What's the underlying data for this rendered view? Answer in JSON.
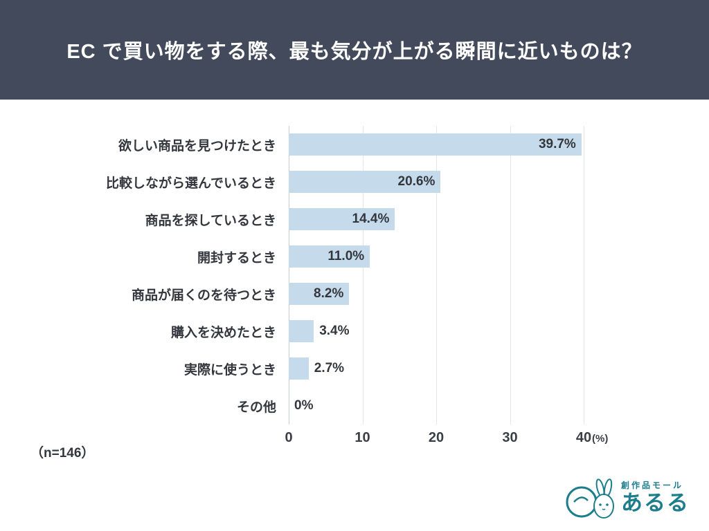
{
  "header": {
    "title": "EC で買い物をする際、最も気分が上がる瞬間に近いものは？"
  },
  "chart_data": {
    "type": "bar",
    "orientation": "horizontal",
    "title": "EC で買い物をする際、最も気分が上がる瞬間に近いものは？",
    "categories": [
      "欲しい商品を見つけたとき",
      "比較しながら選んでいるとき",
      "商品を探しているとき",
      "開封するとき",
      "商品が届くのを待つとき",
      "購入を決めたとき",
      "実際に使うとき",
      "その他"
    ],
    "values": [
      39.7,
      20.6,
      14.4,
      11.0,
      8.2,
      3.4,
      2.7,
      0
    ],
    "value_labels": [
      "39.7%",
      "20.6%",
      "14.4%",
      "11.0%",
      "8.2%",
      "3.4%",
      "2.7%",
      "0%"
    ],
    "xlim": [
      0,
      40
    ],
    "xticks": [
      0,
      10,
      20,
      30,
      40
    ],
    "unit_label": "(%)",
    "bar_color": "#c5daea",
    "grid": true,
    "note": "（n=146）"
  },
  "footer": {
    "sample_note": "（n=146）",
    "logo": {
      "brand_small": "創作品モール",
      "brand_large": "あるる",
      "color": "#1d7d8c"
    }
  }
}
